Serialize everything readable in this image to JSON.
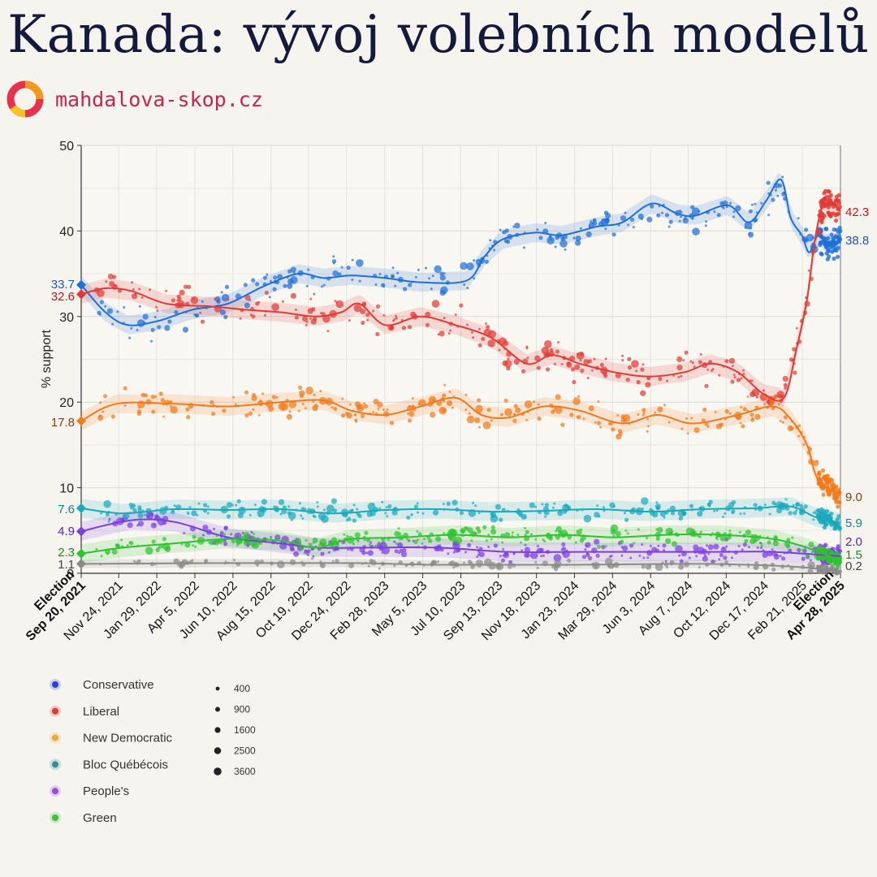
{
  "header": {
    "title": "Kanada: vývoj volebních modelů",
    "brand": "mahdalova-skop.cz"
  },
  "chart_data": {
    "type": "line",
    "ylabel": "% support",
    "ylim": [
      0,
      50
    ],
    "y_ticks": [
      0,
      10,
      20,
      30,
      40,
      50
    ],
    "x_ticks": [
      {
        "label": "Election\nSep 20, 2021",
        "date": "2021-09-20",
        "bold": true
      },
      {
        "label": "Nov 24, 2021",
        "date": "2021-11-24"
      },
      {
        "label": "Jan 29, 2022",
        "date": "2022-01-29"
      },
      {
        "label": "Apr 5, 2022",
        "date": "2022-04-05"
      },
      {
        "label": "Jun 10, 2022",
        "date": "2022-06-10"
      },
      {
        "label": "Aug 15, 2022",
        "date": "2022-08-15"
      },
      {
        "label": "Oct 19, 2022",
        "date": "2022-10-19"
      },
      {
        "label": "Dec 24, 2022",
        "date": "2022-12-24"
      },
      {
        "label": "Feb 28, 2023",
        "date": "2023-02-28"
      },
      {
        "label": "May 5, 2023",
        "date": "2023-05-05"
      },
      {
        "label": "Jul 10, 2023",
        "date": "2023-07-10"
      },
      {
        "label": "Sep 13, 2023",
        "date": "2023-09-13"
      },
      {
        "label": "Nov 18, 2023",
        "date": "2023-11-18"
      },
      {
        "label": "Jan 23, 2024",
        "date": "2024-01-23"
      },
      {
        "label": "Mar 29, 2024",
        "date": "2024-03-29"
      },
      {
        "label": "Jun 3, 2024",
        "date": "2024-06-03"
      },
      {
        "label": "Aug 7, 2024",
        "date": "2024-08-07"
      },
      {
        "label": "Oct 12, 2024",
        "date": "2024-10-12"
      },
      {
        "label": "Dec 17, 2024",
        "date": "2024-12-17"
      },
      {
        "label": "Feb 21, 2025",
        "date": "2025-02-21"
      },
      {
        "label": "Election\nApr 28, 2025",
        "date": "2025-04-28",
        "bold": true
      }
    ],
    "grid": true,
    "legend_position": "bottom-left",
    "series": [
      {
        "name": "Conservative",
        "color": "#1f6fd6",
        "legend_color": "#2a3fd6",
        "start_label": "33.7",
        "end_label": "38.8",
        "trend": [
          [
            "2021-09-20",
            33.7
          ],
          [
            "2021-11-01",
            30.5
          ],
          [
            "2021-12-10",
            29.0
          ],
          [
            "2022-02-01",
            29.5
          ],
          [
            "2022-04-01",
            30.8
          ],
          [
            "2022-06-01",
            31.5
          ],
          [
            "2022-08-01",
            33.5
          ],
          [
            "2022-10-01",
            35.0
          ],
          [
            "2022-11-15",
            34.5
          ],
          [
            "2023-01-01",
            34.8
          ],
          [
            "2023-03-01",
            34.5
          ],
          [
            "2023-05-01",
            34.0
          ],
          [
            "2023-07-20",
            34.2
          ],
          [
            "2023-08-20",
            37.0
          ],
          [
            "2023-09-20",
            39.0
          ],
          [
            "2023-11-15",
            39.8
          ],
          [
            "2024-01-01",
            39.5
          ],
          [
            "2024-03-01",
            40.5
          ],
          [
            "2024-04-15",
            41.0
          ],
          [
            "2024-06-05",
            43.2
          ],
          [
            "2024-07-20",
            42.0
          ],
          [
            "2024-08-20",
            41.8
          ],
          [
            "2024-10-15",
            43.0
          ],
          [
            "2024-11-20",
            41.0
          ],
          [
            "2024-12-20",
            43.5
          ],
          [
            "2025-01-15",
            46.0
          ],
          [
            "2025-02-01",
            41.5
          ],
          [
            "2025-02-20",
            39.5
          ],
          [
            "2025-03-05",
            37.5
          ],
          [
            "2025-03-20",
            39.5
          ],
          [
            "2025-04-05",
            38.5
          ],
          [
            "2025-04-28",
            38.8
          ]
        ]
      },
      {
        "name": "Liberal",
        "color": "#e03b34",
        "legend_color": "#d63a3a",
        "start_label": "32.6",
        "end_label": "42.3",
        "trend": [
          [
            "2021-09-20",
            32.6
          ],
          [
            "2021-11-01",
            33.3
          ],
          [
            "2021-12-15",
            33.0
          ],
          [
            "2022-02-15",
            31.5
          ],
          [
            "2022-05-01",
            31.2
          ],
          [
            "2022-07-01",
            30.8
          ],
          [
            "2022-09-01",
            30.5
          ],
          [
            "2022-11-01",
            30.0
          ],
          [
            "2022-12-15",
            30.5
          ],
          [
            "2023-01-15",
            31.5
          ],
          [
            "2023-03-01",
            29.0
          ],
          [
            "2023-05-01",
            30.0
          ],
          [
            "2023-07-01",
            29.0
          ],
          [
            "2023-09-01",
            27.5
          ],
          [
            "2023-11-01",
            24.5
          ],
          [
            "2023-12-15",
            25.5
          ],
          [
            "2024-02-01",
            24.5
          ],
          [
            "2024-04-01",
            23.5
          ],
          [
            "2024-06-01",
            23.0
          ],
          [
            "2024-08-01",
            23.5
          ],
          [
            "2024-09-15",
            24.5
          ],
          [
            "2024-11-01",
            23.5
          ],
          [
            "2024-12-15",
            21.0
          ],
          [
            "2025-01-20",
            20.5
          ],
          [
            "2025-02-10",
            26.0
          ],
          [
            "2025-03-01",
            32.0
          ],
          [
            "2025-03-15",
            39.0
          ],
          [
            "2025-04-01",
            43.5
          ],
          [
            "2025-04-28",
            42.3
          ]
        ]
      },
      {
        "name": "New Democratic",
        "color": "#f07a1c",
        "legend_color": "#e9ac3a",
        "start_label": "17.8",
        "end_label": "9.0",
        "trend": [
          [
            "2021-09-20",
            17.8
          ],
          [
            "2021-11-20",
            19.8
          ],
          [
            "2022-03-01",
            19.8
          ],
          [
            "2022-06-01",
            19.5
          ],
          [
            "2022-09-01",
            20.0
          ],
          [
            "2022-11-15",
            20.2
          ],
          [
            "2023-01-01",
            19.0
          ],
          [
            "2023-03-01",
            18.5
          ],
          [
            "2023-05-01",
            19.5
          ],
          [
            "2023-07-01",
            20.5
          ],
          [
            "2023-08-15",
            18.5
          ],
          [
            "2023-10-01",
            18.2
          ],
          [
            "2023-12-01",
            19.5
          ],
          [
            "2024-02-01",
            19.0
          ],
          [
            "2024-04-15",
            17.5
          ],
          [
            "2024-06-15",
            18.5
          ],
          [
            "2024-08-15",
            17.5
          ],
          [
            "2024-11-01",
            18.5
          ],
          [
            "2025-01-01",
            19.5
          ],
          [
            "2025-02-01",
            18.0
          ],
          [
            "2025-03-01",
            15.0
          ],
          [
            "2025-03-20",
            11.0
          ],
          [
            "2025-04-28",
            9.0
          ]
        ]
      },
      {
        "name": "Bloc Québécois",
        "color": "#19a9bd",
        "legend_color": "#2f8f9f",
        "start_label": "7.6",
        "end_label": "5.9",
        "trend": [
          [
            "2021-09-20",
            7.6
          ],
          [
            "2021-12-01",
            7.0
          ],
          [
            "2022-03-01",
            7.5
          ],
          [
            "2022-06-01",
            7.4
          ],
          [
            "2022-09-01",
            7.5
          ],
          [
            "2022-12-01",
            7.0
          ],
          [
            "2023-03-01",
            7.4
          ],
          [
            "2023-06-01",
            7.5
          ],
          [
            "2023-09-01",
            7.2
          ],
          [
            "2023-12-01",
            7.3
          ],
          [
            "2024-03-01",
            7.5
          ],
          [
            "2024-06-01",
            7.2
          ],
          [
            "2024-09-01",
            7.5
          ],
          [
            "2024-12-01",
            7.6
          ],
          [
            "2025-02-01",
            7.8
          ],
          [
            "2025-03-15",
            6.6
          ],
          [
            "2025-04-28",
            5.9
          ]
        ]
      },
      {
        "name": "People's",
        "color": "#7b3fe0",
        "legend_color": "#9a4bd6",
        "start_label": "4.9",
        "end_label": "2.0",
        "trend": [
          [
            "2021-09-20",
            4.9
          ],
          [
            "2021-12-15",
            6.2
          ],
          [
            "2022-03-01",
            6.0
          ],
          [
            "2022-06-01",
            4.2
          ],
          [
            "2022-09-01",
            3.5
          ],
          [
            "2022-11-01",
            3.0
          ],
          [
            "2023-02-01",
            3.0
          ],
          [
            "2023-06-01",
            3.0
          ],
          [
            "2023-10-01",
            2.5
          ],
          [
            "2024-02-01",
            2.5
          ],
          [
            "2024-06-01",
            2.5
          ],
          [
            "2024-10-01",
            2.5
          ],
          [
            "2025-01-01",
            2.5
          ],
          [
            "2025-04-28",
            2.0
          ]
        ]
      },
      {
        "name": "Green",
        "color": "#2fc22f",
        "legend_color": "#3bc23b",
        "start_label": "2.3",
        "end_label": "1.5",
        "trend": [
          [
            "2021-09-20",
            2.3
          ],
          [
            "2021-12-01",
            3.0
          ],
          [
            "2022-03-01",
            3.5
          ],
          [
            "2022-06-01",
            4.0
          ],
          [
            "2022-09-01",
            3.8
          ],
          [
            "2022-11-01",
            3.0
          ],
          [
            "2023-01-01",
            4.0
          ],
          [
            "2023-04-01",
            4.2
          ],
          [
            "2023-07-01",
            4.5
          ],
          [
            "2023-10-01",
            4.2
          ],
          [
            "2024-01-01",
            4.5
          ],
          [
            "2024-04-01",
            4.2
          ],
          [
            "2024-07-01",
            4.5
          ],
          [
            "2024-10-01",
            4.5
          ],
          [
            "2025-01-01",
            4.0
          ],
          [
            "2025-03-01",
            3.0
          ],
          [
            "2025-04-28",
            1.5
          ]
        ]
      },
      {
        "name": "Other",
        "color": "#8a8a8a",
        "legend": false,
        "start_label": "1.1",
        "end_label": "0.2",
        "trend": [
          [
            "2021-09-20",
            1.1
          ],
          [
            "2022-06-01",
            1.2
          ],
          [
            "2023-01-01",
            1.2
          ],
          [
            "2023-06-01",
            1.0
          ],
          [
            "2024-01-01",
            1.0
          ],
          [
            "2024-09-01",
            1.1
          ],
          [
            "2025-02-01",
            0.8
          ],
          [
            "2025-04-28",
            0.2
          ]
        ]
      }
    ],
    "size_legend": [
      400,
      900,
      1600,
      2500,
      3600
    ]
  },
  "icons": {
    "logo": "mahdalova-skop-logo"
  }
}
